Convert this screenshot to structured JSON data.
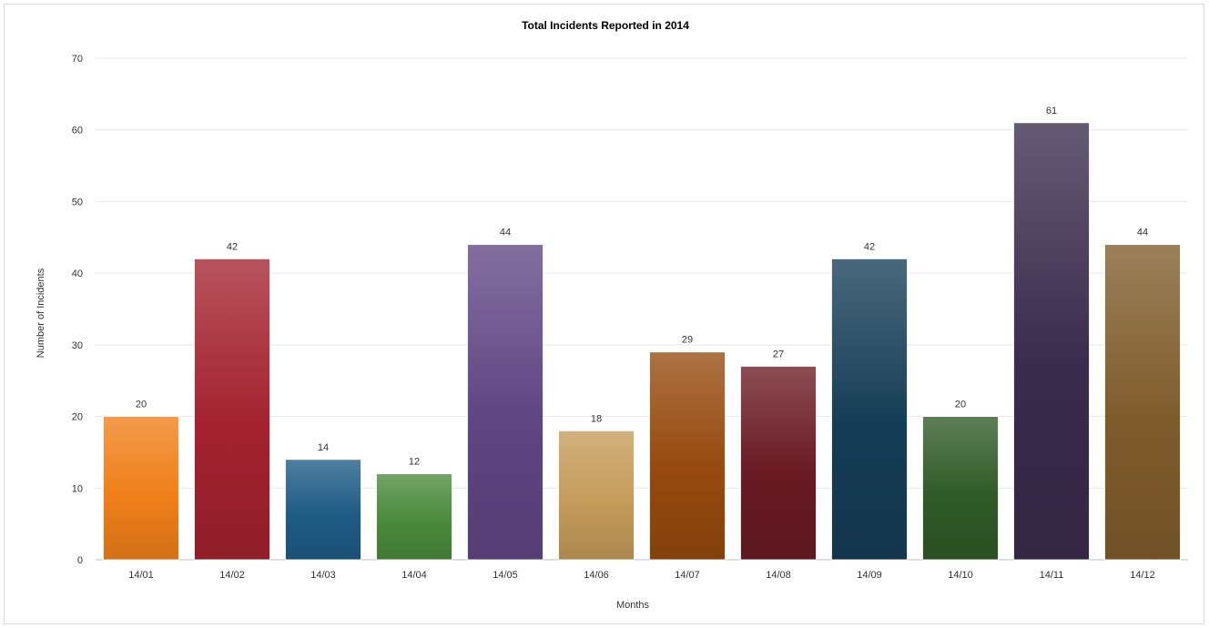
{
  "chart_data": {
    "type": "bar",
    "title": "Total Incidents Reported in 2014",
    "xlabel": "Months",
    "ylabel": "Number of Incidents",
    "categories": [
      "14/01",
      "14/02",
      "14/03",
      "14/04",
      "14/05",
      "14/06",
      "14/07",
      "14/08",
      "14/09",
      "14/10",
      "14/11",
      "14/12"
    ],
    "values": [
      20,
      42,
      14,
      12,
      44,
      18,
      29,
      27,
      42,
      20,
      61,
      44
    ],
    "ylim": [
      0,
      70
    ],
    "yticks": [
      "0",
      "10",
      "20",
      "30",
      "40",
      "50",
      "60",
      "70"
    ],
    "grid": true,
    "legend": "none",
    "colors": [
      "#f07f1a",
      "#a3222f",
      "#1f5b85",
      "#4a8a3c",
      "#5f4683",
      "#c49b5a",
      "#964a0f",
      "#6a1a23",
      "#163d56",
      "#305a28",
      "#3a2c4c",
      "#7f5c2c"
    ]
  }
}
